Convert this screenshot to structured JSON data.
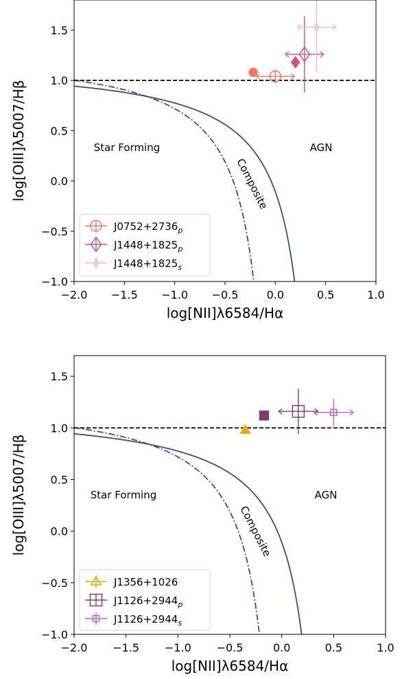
{
  "chart_data": [
    {
      "type": "scatter",
      "title": "",
      "xlabel": "log[NII]λ6584/Hα",
      "ylabel": "log[OIII]λ5007/Hβ",
      "xlim": [
        -2.0,
        1.0
      ],
      "ylim": [
        -1.0,
        1.8
      ],
      "xticks": [
        "−2.0",
        "−1.5",
        "−1.0",
        "−0.5",
        "0.0",
        "0.5",
        "1.0"
      ],
      "xtick_values": [
        -2.0,
        -1.5,
        -1.0,
        -0.5,
        0.0,
        0.5,
        1.0
      ],
      "yticks": [
        "−1.0",
        "−0.5",
        "0.0",
        "0.5",
        "1.0",
        "1.5"
      ],
      "ytick_values": [
        -1.0,
        -0.5,
        0.0,
        0.5,
        1.0,
        1.5
      ],
      "grid": false,
      "legend_position": "lower-left",
      "region_labels": {
        "star_forming": "Star Forming",
        "composite": "Composite",
        "agn": "AGN"
      },
      "reference_lines": {
        "horizontal_y": 1.0,
        "kewley_curve": "solid",
        "kauffmann_curve": "dashdot"
      },
      "series": [
        {
          "name": "J0752+2736",
          "subscript": "p",
          "color": "#f9785e",
          "marker": "circle-open",
          "points": [
            {
              "x": -0.22,
              "y": 1.08,
              "filled": true,
              "xerr": 0,
              "yerr": 0.04
            },
            {
              "x": 0.0,
              "y": 1.04,
              "filled": false,
              "xerr": 0.19,
              "yerr": 0.07,
              "arrows": "both"
            }
          ]
        },
        {
          "name": "J1448+1825",
          "subscript": "p",
          "color": "#d4507f",
          "marker": "diamond-open",
          "points": [
            {
              "x": 0.2,
              "y": 1.18,
              "filled": true,
              "xerr": 0,
              "yerr": 0.03
            },
            {
              "x": 0.29,
              "y": 1.26,
              "filled": false,
              "xerr": 0.19,
              "yerr": 0.38,
              "arrows": "both"
            }
          ]
        },
        {
          "name": "J1448+1825",
          "subscript": "s",
          "color": "#f8b8cc",
          "marker": "thin-diamond",
          "points": [
            {
              "x": 0.41,
              "y": 1.53,
              "filled": false,
              "xerr": 0.19,
              "yerr": 0.45,
              "arrows": "both"
            }
          ]
        }
      ]
    },
    {
      "type": "scatter",
      "title": "",
      "xlabel": "log[NII]λ6584/Hα",
      "ylabel": "log[OIII]λ5007/Hβ",
      "xlim": [
        -2.0,
        1.0
      ],
      "ylim": [
        -1.0,
        1.7
      ],
      "xticks": [
        "−2.0",
        "−1.5",
        "−1.0",
        "−0.5",
        "0.0",
        "0.5",
        "1.0"
      ],
      "xtick_values": [
        -2.0,
        -1.5,
        -1.0,
        -0.5,
        0.0,
        0.5,
        1.0
      ],
      "yticks": [
        "−1.0",
        "−0.5",
        "0.0",
        "0.5",
        "1.0",
        "1.5"
      ],
      "ytick_values": [
        -1.0,
        -0.5,
        0.0,
        0.5,
        1.0,
        1.5
      ],
      "grid": false,
      "legend_position": "lower-left",
      "region_labels": {
        "star_forming": "Star Forming",
        "composite": "Composite",
        "agn": "AGN"
      },
      "reference_lines": {
        "horizontal_y": 1.0,
        "kewley_curve": "solid",
        "kauffmann_curve": "dashdot"
      },
      "series": [
        {
          "name": "J1356+1026",
          "subscript": "",
          "color": "#f5a50b",
          "marker": "triangle-open",
          "points": [
            {
              "x": -0.35,
              "y": 0.98,
              "filled": true,
              "xerr": 0,
              "yerr": 0
            }
          ]
        },
        {
          "name": "J1126+2944",
          "subscript": "p",
          "color": "#7a3e7c",
          "marker": "square-open",
          "points": [
            {
              "x": -0.17,
              "y": 1.12,
              "filled": true,
              "xerr": 0,
              "yerr": 0.05
            },
            {
              "x": 0.16,
              "y": 1.16,
              "filled": false,
              "xerr": 0.19,
              "yerr": 0.22,
              "arrows": "both"
            }
          ]
        },
        {
          "name": "J1126+2944",
          "subscript": "s",
          "color": "#c063c4",
          "marker": "square-open-small",
          "points": [
            {
              "x": 0.5,
              "y": 1.15,
              "filled": false,
              "xerr": 0.19,
              "yerr": 0.13,
              "arrows": "both"
            }
          ]
        }
      ]
    }
  ]
}
